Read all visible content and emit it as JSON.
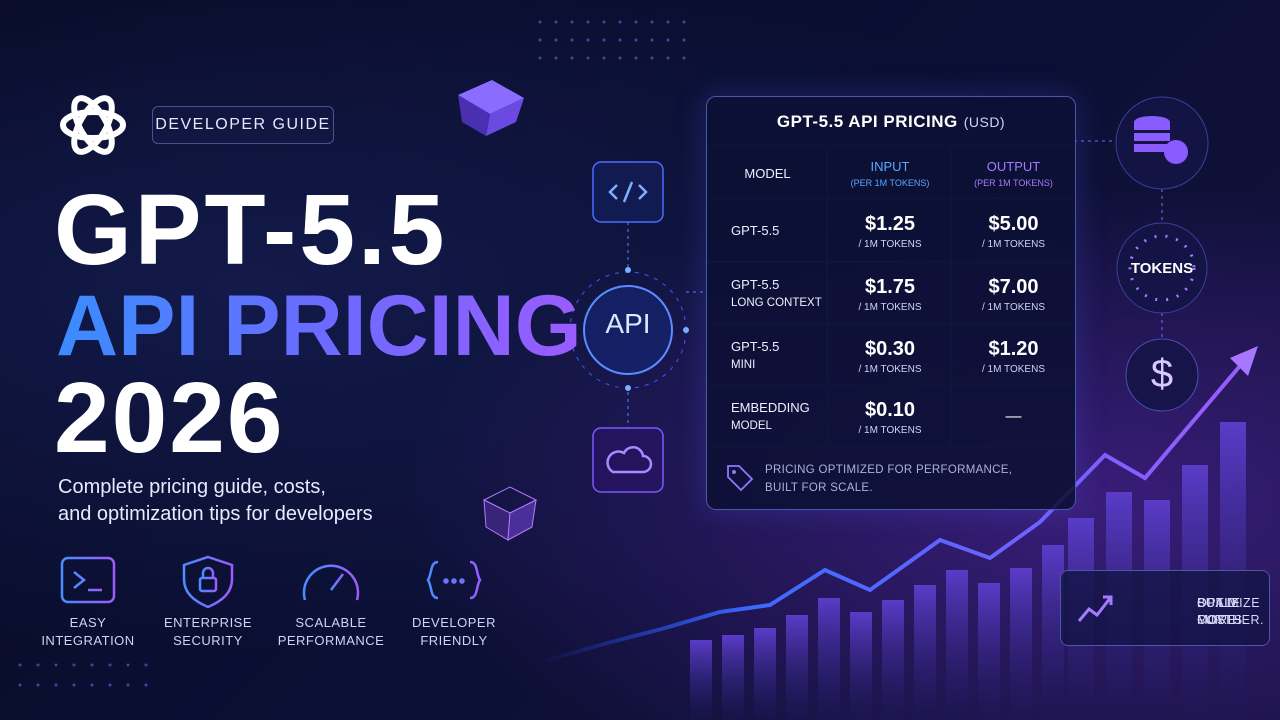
{
  "badge": "DEVELOPER GUIDE",
  "headline": {
    "line1": "GPT-5.5",
    "line2": "API PRICING",
    "line3": "2026"
  },
  "subtitle": [
    "Complete pricing guide, costs,",
    "and optimization tips for developers"
  ],
  "features": [
    {
      "label": [
        "EASY",
        "INTEGRATION"
      ]
    },
    {
      "label": [
        "ENTERPRISE",
        "SECURITY"
      ]
    },
    {
      "label": [
        "SCALABLE",
        "PERFORMANCE"
      ]
    },
    {
      "label": [
        "DEVELOPER",
        "FRIENDLY"
      ]
    }
  ],
  "api_label": "API",
  "table": {
    "title": "GPT-5.5 API PRICING",
    "title_unit": "(USD)",
    "headers": [
      {
        "label": "MODEL"
      },
      {
        "label": "INPUT",
        "sub": "(PER 1M TOKENS)"
      },
      {
        "label": "OUTPUT",
        "sub": "(PER 1M TOKENS)"
      }
    ],
    "rows": [
      {
        "model": [
          "GPT-5.5"
        ],
        "input": {
          "price": "$1.25",
          "unit": "/ 1M TOKENS"
        },
        "output": {
          "price": "$5.00",
          "unit": "/ 1M TOKENS"
        }
      },
      {
        "model": [
          "GPT-5.5",
          "LONG CONTEXT"
        ],
        "input": {
          "price": "$1.75",
          "unit": "/ 1M TOKENS"
        },
        "output": {
          "price": "$7.00",
          "unit": "/ 1M TOKENS"
        }
      },
      {
        "model": [
          "GPT-5.5",
          "MINI"
        ],
        "input": {
          "price": "$0.30",
          "unit": "/ 1M TOKENS"
        },
        "output": {
          "price": "$1.20",
          "unit": "/ 1M TOKENS"
        }
      },
      {
        "model": [
          "EMBEDDING",
          "MODEL"
        ],
        "input": {
          "price": "$0.10",
          "unit": "/ 1M TOKENS"
        },
        "output": {
          "price": "—"
        }
      }
    ],
    "footer": [
      "PRICING OPTIMIZED FOR PERFORMANCE,",
      "BUILT FOR SCALE."
    ]
  },
  "tokens_label": "TOKENS",
  "dollar_icon": "$",
  "callout": [
    "OPTIMIZE COSTS.",
    "BUILD MORE.",
    "SCALE FURTHER."
  ]
}
